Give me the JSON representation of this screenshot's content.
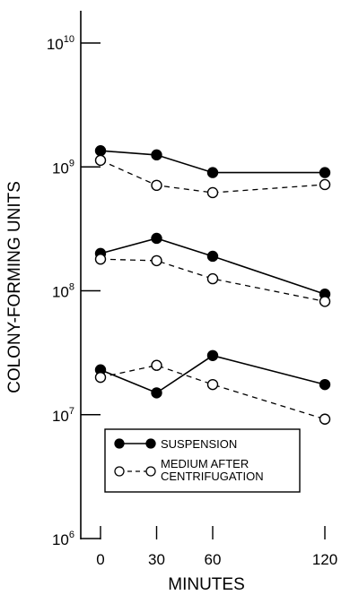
{
  "chart_data": {
    "type": "line",
    "xlabel": "MINUTES",
    "ylabel": "COLONY-FORMING UNITS",
    "x_ticks": [
      0,
      30,
      60,
      120
    ],
    "y_scale": "log",
    "y_ticks": [
      {
        "base": "10",
        "exp": "6"
      },
      {
        "base": "10",
        "exp": "7"
      },
      {
        "base": "10",
        "exp": "8"
      },
      {
        "base": "10",
        "exp": "9"
      },
      {
        "base": "10",
        "exp": "10"
      }
    ],
    "ylim": [
      1000000,
      10000000000
    ],
    "xlim": [
      0,
      120
    ],
    "grid": false,
    "legend_position": "bottom-left",
    "legend": [
      {
        "label": "SUSPENSION",
        "marker": "filled-circle",
        "line": "solid"
      },
      {
        "label_lines": [
          "MEDIUM AFTER",
          "CENTRIFUGATION"
        ],
        "marker": "open-circle",
        "line": "dashed"
      }
    ],
    "series": [
      {
        "group": "high",
        "kind": "suspension",
        "x": [
          0,
          30,
          60,
          120
        ],
        "y": [
          1350000000,
          1250000000,
          900000000,
          900000000
        ]
      },
      {
        "group": "high",
        "kind": "medium",
        "x": [
          0,
          30,
          60,
          120
        ],
        "y": [
          1130000000,
          710000000,
          620000000,
          720000000
        ]
      },
      {
        "group": "middle",
        "kind": "suspension",
        "x": [
          0,
          30,
          60,
          120
        ],
        "y": [
          200000000,
          265000000,
          190000000,
          94000000
        ]
      },
      {
        "group": "middle",
        "kind": "medium",
        "x": [
          0,
          30,
          60,
          120
        ],
        "y": [
          180000000,
          175000000,
          125000000,
          82000000
        ]
      },
      {
        "group": "low",
        "kind": "suspension",
        "x": [
          0,
          30,
          60,
          120
        ],
        "y": [
          23000000,
          15000000,
          30000000,
          17500000
        ]
      },
      {
        "group": "low",
        "kind": "medium",
        "x": [
          0,
          30,
          60,
          120
        ],
        "y": [
          20000000,
          25000000,
          17500000,
          9200000
        ]
      }
    ]
  }
}
